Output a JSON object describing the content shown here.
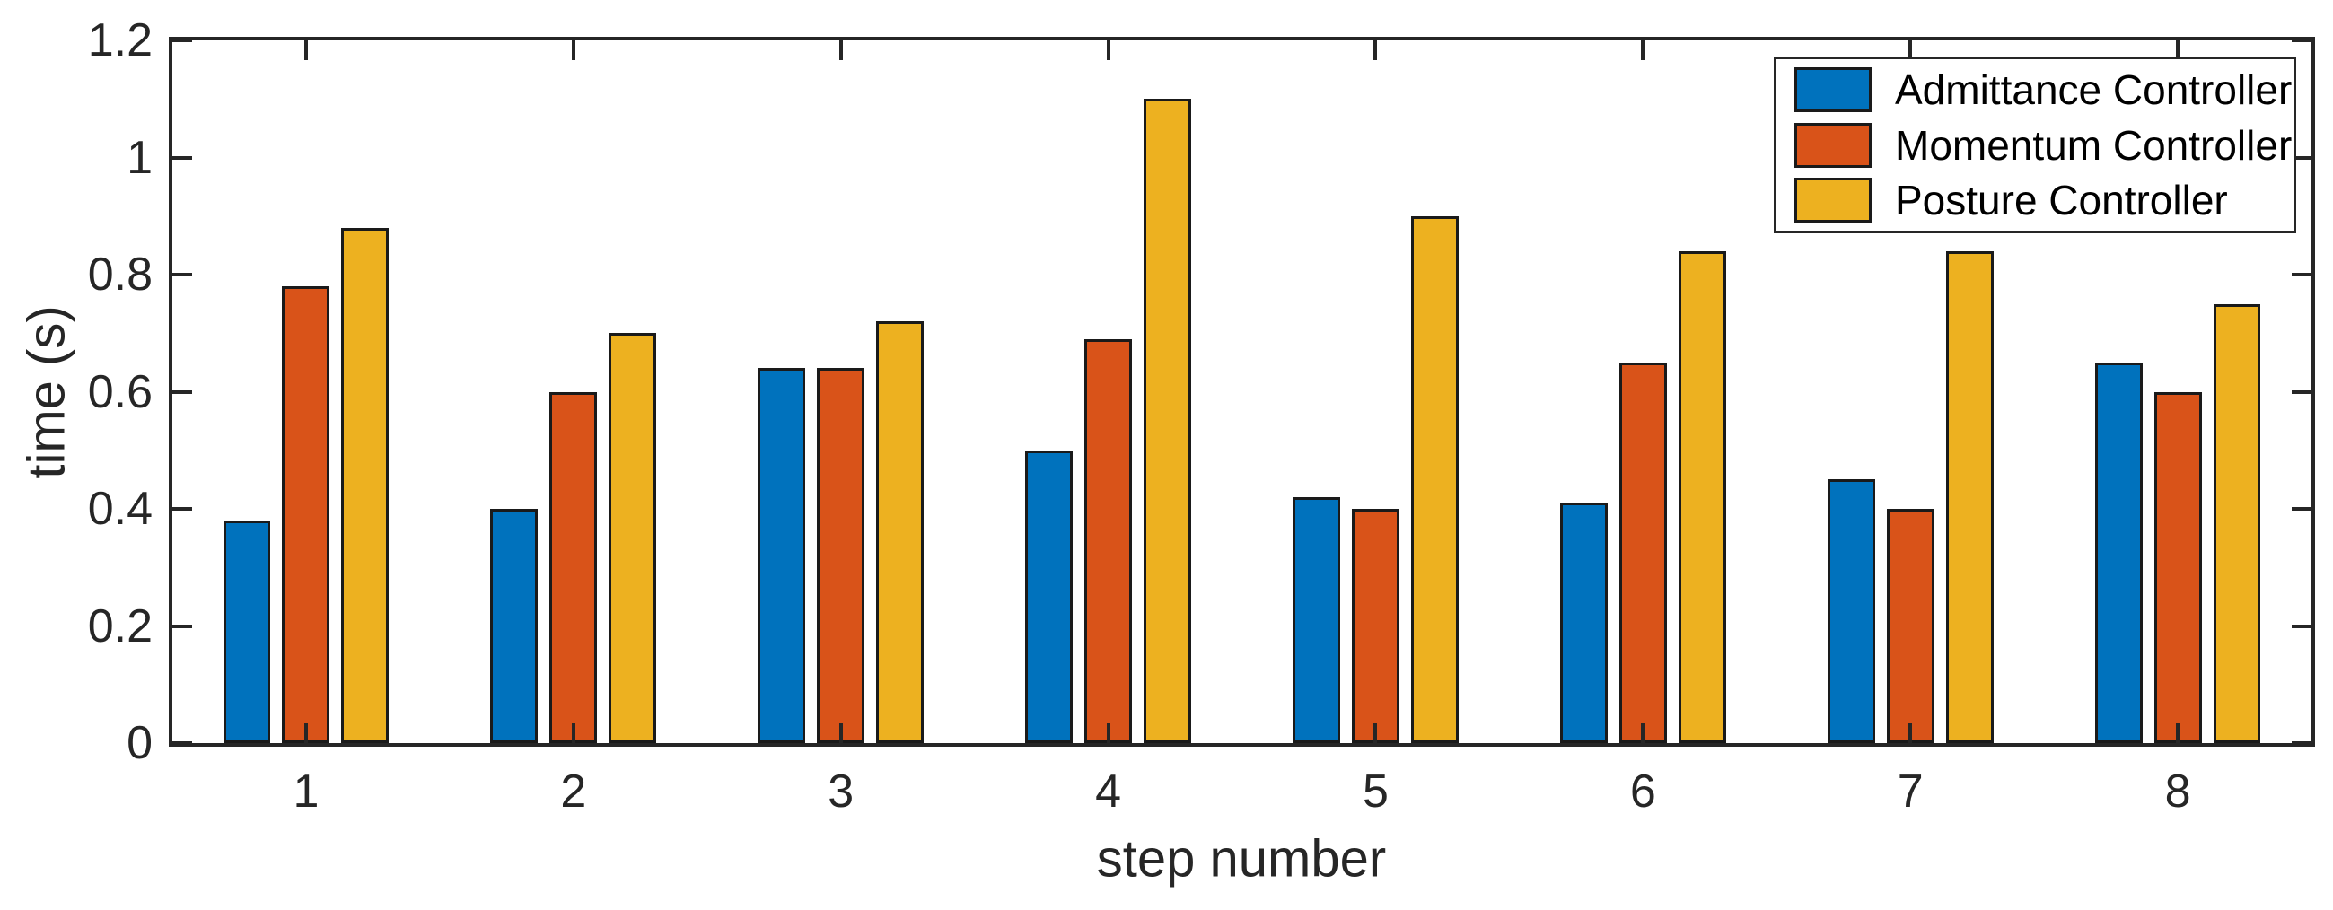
{
  "chart_data": {
    "type": "bar",
    "title": "",
    "xlabel": "step number",
    "ylabel": "time (s)",
    "categories": [
      "1",
      "2",
      "3",
      "4",
      "5",
      "6",
      "7",
      "8"
    ],
    "series": [
      {
        "name": "Admittance Controller",
        "color": "#0072BD",
        "values": [
          0.38,
          0.4,
          0.64,
          0.5,
          0.42,
          0.41,
          0.45,
          0.65
        ]
      },
      {
        "name": "Momentum Controller",
        "color": "#D95319",
        "values": [
          0.78,
          0.6,
          0.64,
          0.69,
          0.4,
          0.65,
          0.4,
          0.6
        ]
      },
      {
        "name": "Posture Controller",
        "color": "#EDB120",
        "values": [
          0.88,
          0.7,
          0.72,
          1.1,
          0.9,
          0.84,
          0.84,
          0.75
        ]
      }
    ],
    "ylim": [
      0,
      1.2
    ],
    "y_ticks": [
      "0",
      "0.2",
      "0.4",
      "0.6",
      "0.8",
      "1",
      "1.2"
    ],
    "y_tick_values": [
      0,
      0.2,
      0.4,
      0.6,
      0.8,
      1,
      1.2
    ],
    "grid": false,
    "legend_position": "top-right",
    "axis_color": "#262626",
    "bar_edge_color": "#1a1a1a",
    "background_color": "#ffffff"
  }
}
